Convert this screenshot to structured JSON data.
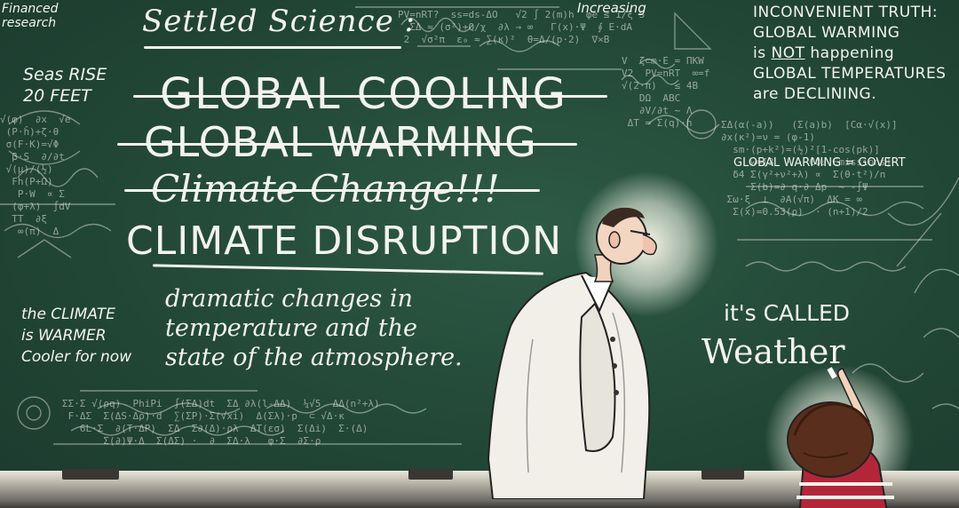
{
  "board": {
    "title": "Settled Science :",
    "terms": {
      "cooling": "GLOBAL COOLING",
      "warming": "GLOBAL WARMING",
      "climate_change": "Climate Change!!!",
      "disruption": "CLIMATE DISRUPTION"
    },
    "definition": "dramatic changes in temperature and the state of the atmosphere.",
    "top_right": {
      "line1": "INCONVENIENT TRUTH:",
      "line2": "GLOBAL WARMING",
      "line3_a": "is",
      "line3_not": "NOT",
      "line3_b": "happening",
      "line4": "GLOBAL TEMPERATURES",
      "line5": "are DECLINING."
    },
    "sea_rise": {
      "line1": "Seas RISE",
      "line2": "20 FEET"
    },
    "research": {
      "line1": "Financed",
      "line2": "research"
    },
    "increasing": "Increasing",
    "govt_note": "GLOBAL WARMING = GOVERT",
    "side_note": {
      "line1": "the CLIMATE",
      "line2": "is WARMER",
      "line3": "Cooler for now"
    },
    "kid_writing": {
      "line1": "it's CALLED",
      "line2": "Weather"
    }
  },
  "colors": {
    "chalkboard": "#244a39",
    "chalk": "#f3f3ef",
    "tray": "#bdb9ac"
  }
}
